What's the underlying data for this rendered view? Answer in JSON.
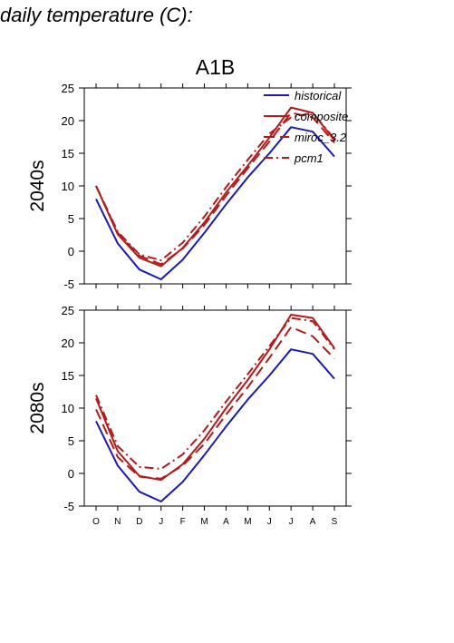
{
  "page": {
    "title": "daily temperature (C):"
  },
  "chart_data": {
    "type": "line",
    "title": "A1B",
    "xlabel": "",
    "categories": [
      "O",
      "N",
      "D",
      "J",
      "F",
      "M",
      "A",
      "M",
      "J",
      "J",
      "A",
      "S"
    ],
    "ylim": [
      -5,
      25
    ],
    "yticks": [
      -5,
      0,
      5,
      10,
      15,
      20,
      25
    ],
    "grid": false,
    "legend": {
      "placement": "top-right",
      "entries": [
        "historical",
        "composite",
        "miroc_3.2",
        "pcm1"
      ]
    },
    "styles": {
      "historical": {
        "color": "#1a1ab4",
        "dash": ""
      },
      "composite": {
        "color": "#b41a1a",
        "dash": ""
      },
      "miroc_3.2": {
        "color": "#b41a1a",
        "dash": "12 6"
      },
      "pcm1": {
        "color": "#b41a1a",
        "dash": "10 4 2 4"
      }
    },
    "panels": [
      {
        "ylabel": "2040s",
        "series": [
          {
            "name": "historical",
            "values": [
              8.0,
              1.2,
              -2.8,
              -4.3,
              -1.3,
              2.8,
              7.2,
              11.3,
              15.0,
              19.0,
              18.3,
              14.5
            ]
          },
          {
            "name": "composite",
            "values": [
              10.0,
              2.6,
              -1.0,
              -2.3,
              0.5,
              4.4,
              9.0,
              13.1,
              17.4,
              22.0,
              21.2,
              17.0
            ]
          },
          {
            "name": "miroc_3.2",
            "values": [
              10.0,
              2.8,
              -0.7,
              -2.0,
              0.4,
              4.0,
              8.5,
              12.7,
              16.8,
              21.2,
              20.5,
              16.6
            ]
          },
          {
            "name": "pcm1",
            "values": [
              10.0,
              3.0,
              -0.5,
              -1.4,
              1.3,
              5.3,
              9.8,
              14.0,
              18.0,
              20.5,
              21.2,
              17.2
            ]
          }
        ]
      },
      {
        "ylabel": "2080s",
        "series": [
          {
            "name": "historical",
            "values": [
              8.0,
              1.2,
              -2.8,
              -4.3,
              -1.3,
              2.8,
              7.2,
              11.3,
              15.0,
              19.0,
              18.3,
              14.5
            ]
          },
          {
            "name": "composite",
            "values": [
              11.5,
              3.4,
              -0.4,
              -1.0,
              1.4,
              5.3,
              10.0,
              14.3,
              19.0,
              24.3,
              23.8,
              19.2
            ]
          },
          {
            "name": "miroc_3.2",
            "values": [
              9.8,
              2.5,
              -0.5,
              -0.8,
              1.2,
              4.5,
              9.0,
              13.2,
              17.7,
              22.4,
              21.0,
              17.6
            ]
          },
          {
            "name": "pcm1",
            "values": [
              12.0,
              4.2,
              1.0,
              0.7,
              2.9,
              6.6,
              11.0,
              15.2,
              19.5,
              23.8,
              23.3,
              19.0
            ]
          }
        ]
      }
    ]
  }
}
